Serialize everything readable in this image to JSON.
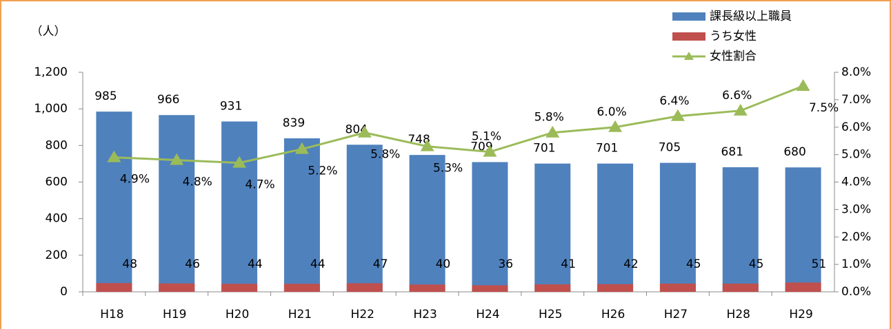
{
  "chart_data": {
    "type": "bar",
    "y_label": "（人）",
    "categories": [
      "H18",
      "H19",
      "H20",
      "H21",
      "H22",
      "H23",
      "H24",
      "H25",
      "H26",
      "H27",
      "H28",
      "H29"
    ],
    "series": [
      {
        "name": "課長級以上職員",
        "color": "#4f81bd",
        "values": [
          985,
          966,
          931,
          839,
          804,
          748,
          709,
          701,
          701,
          705,
          681,
          680
        ]
      },
      {
        "name": "うち女性",
        "color": "#c0504d",
        "values": [
          48,
          46,
          44,
          44,
          47,
          40,
          36,
          41,
          42,
          45,
          45,
          51
        ]
      },
      {
        "name": "女性割合",
        "color": "#9bbb59",
        "type": "line",
        "axis": "y2",
        "values": [
          4.9,
          4.8,
          4.7,
          5.2,
          5.8,
          5.3,
          5.1,
          5.8,
          6.0,
          6.4,
          6.6,
          7.5
        ],
        "value_labels": [
          "4.9%",
          "4.8%",
          "4.7%",
          "5.2%",
          "5.8%",
          "5.3%",
          "5.1%",
          "5.8%",
          "6.0%",
          "6.4%",
          "6.6%",
          "7.5%"
        ]
      }
    ],
    "ylim": [
      0,
      1200
    ],
    "yticks": [
      0,
      200,
      400,
      600,
      800,
      {
        "value": 1000,
        "label": "1,000"
      },
      {
        "value": 1200,
        "label": "1,200"
      }
    ],
    "y2lim": [
      0,
      8
    ],
    "y2ticks": [
      {
        "value": 0,
        "label": "0.0%"
      },
      {
        "value": 1,
        "label": "1.0%"
      },
      {
        "value": 2,
        "label": "2.0%"
      },
      {
        "value": 3,
        "label": "3.0%"
      },
      {
        "value": 4,
        "label": "4.0%"
      },
      {
        "value": 5,
        "label": "5.0%"
      },
      {
        "value": 6,
        "label": "6.0%"
      },
      {
        "value": 7,
        "label": "7.0%"
      },
      {
        "value": 8,
        "label": "8.0%"
      }
    ],
    "legend": "top-right"
  }
}
